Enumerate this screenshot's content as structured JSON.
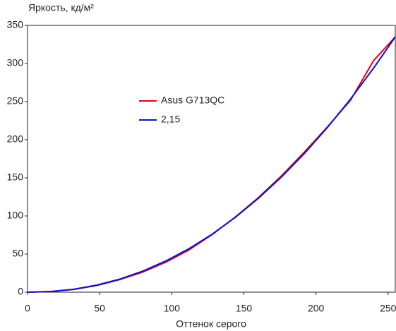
{
  "chart_data": {
    "type": "line",
    "title": "Яркость, кд/м²",
    "x_label": "Оттенок серого",
    "x": [
      0,
      16,
      32,
      48,
      64,
      80,
      96,
      112,
      128,
      144,
      160,
      176,
      192,
      208,
      224,
      240,
      255
    ],
    "series": [
      {
        "name": "Asus G713QC",
        "color": "#e8001c",
        "values": [
          0,
          0.8,
          3.6,
          8.8,
          16.5,
          26.5,
          39.5,
          55.5,
          75.5,
          98.5,
          124,
          152.5,
          184,
          217,
          252,
          304,
          335
        ]
      },
      {
        "name": "2,15",
        "color": "#0a14c8",
        "values": [
          0,
          0.87,
          3.86,
          9.24,
          17.15,
          27.7,
          41.0,
          57.1,
          76.1,
          98.1,
          123.0,
          151.0,
          182.0,
          216.2,
          253.5,
          294.1,
          335
        ]
      }
    ],
    "xlim": [
      0,
      255
    ],
    "xticks": [
      0,
      50,
      100,
      150,
      200,
      250
    ],
    "ylim": [
      0,
      350
    ],
    "yticks": [
      0,
      50,
      100,
      150,
      200,
      250,
      300,
      350
    ],
    "grid": false
  }
}
